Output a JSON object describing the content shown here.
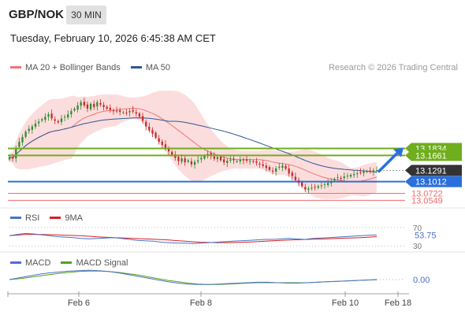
{
  "header": {
    "symbol": "GBP/NOK",
    "timeframe": "30 MIN"
  },
  "datetime": "Tuesday, February 10, 2026 6:45:38 AM CET",
  "legend_main": [
    {
      "label": "MA 20 + Bollinger Bands",
      "color": "#f07474"
    },
    {
      "label": "MA 50",
      "color": "#2f5597"
    }
  ],
  "credit": "Research © 2026 Trading Central",
  "colors": {
    "up": "#2e8b2e",
    "down": "#c62828",
    "band": "#fbd2d2",
    "resistance": "#6fae1c",
    "pivot": "#2a6fdb",
    "support": "#f06a6a",
    "last": "#333333"
  },
  "chart_data": {
    "type": "candlestick",
    "symbol": "GBP/NOK",
    "timeframe": "30 MIN",
    "x_ticks": [
      "Feb 6",
      "Feb 8",
      "Feb 10",
      "Feb 18"
    ],
    "price": {
      "ylim": [
        13.04,
        13.36
      ]
    },
    "last_price": 13.1291,
    "levels": [
      {
        "value": "13.1834",
        "type": "resistance"
      },
      {
        "value": "13.1661",
        "type": "resistance"
      },
      {
        "value": "13.1012",
        "type": "pivot"
      },
      {
        "value": "13.0722",
        "type": "support"
      },
      {
        "value": "13.0549",
        "type": "support"
      }
    ],
    "closes": [
      13.162,
      13.158,
      13.185,
      13.2,
      13.212,
      13.225,
      13.232,
      13.238,
      13.245,
      13.25,
      13.256,
      13.262,
      13.268,
      13.258,
      13.252,
      13.248,
      13.258,
      13.262,
      13.268,
      13.276,
      13.282,
      13.29,
      13.298,
      13.29,
      13.282,
      13.294,
      13.286,
      13.298,
      13.292,
      13.286,
      13.282,
      13.279,
      13.277,
      13.276,
      13.274,
      13.273,
      13.272,
      13.276,
      13.275,
      13.27,
      13.262,
      13.252,
      13.238,
      13.228,
      13.22,
      13.21,
      13.2,
      13.192,
      13.184,
      13.176,
      13.168,
      13.16,
      13.152,
      13.159,
      13.149,
      13.154,
      13.144,
      13.15,
      13.154,
      13.16,
      13.165,
      13.17,
      13.166,
      13.158,
      13.162,
      13.154,
      13.149,
      13.153,
      13.156,
      13.154,
      13.152,
      13.155,
      13.154,
      13.153,
      13.152,
      13.15,
      13.148,
      13.145,
      13.14,
      13.135,
      13.13,
      13.126,
      13.134,
      13.138,
      13.141,
      13.133,
      13.121,
      13.115,
      13.105,
      13.098,
      13.09,
      13.082,
      13.084,
      13.086,
      13.088,
      13.09,
      13.092,
      13.095,
      13.098,
      13.103,
      13.108,
      13.112,
      13.11,
      13.114,
      13.116,
      13.118,
      13.12,
      13.122,
      13.124,
      13.126,
      13.127,
      13.128,
      13.129,
      13.1291
    ],
    "projection": {
      "from": 13.1291,
      "to": 13.1834
    },
    "rsi": {
      "legend": [
        {
          "label": "RSI",
          "color": "#4a72c8"
        },
        {
          "label": "9MA",
          "color": "#d92020"
        }
      ],
      "levels": [
        "70",
        "30"
      ],
      "ylim": [
        20,
        80
      ],
      "last": "53.75",
      "values": [
        52,
        55,
        57,
        56,
        54,
        52,
        50,
        49,
        48,
        46,
        45,
        46,
        47,
        48,
        46,
        44,
        42,
        41,
        40,
        38,
        37,
        36,
        36,
        35,
        36,
        37,
        38,
        39,
        40,
        41,
        42,
        43,
        44,
        44,
        45,
        46,
        45,
        44,
        46,
        47,
        48,
        49,
        50,
        51,
        52,
        53,
        53.75
      ]
    },
    "macd": {
      "legend": [
        {
          "label": "MACD",
          "color": "#4a72c8"
        },
        {
          "label": "MACD Signal",
          "color": "#56a01e"
        }
      ],
      "zero_label": "0.00",
      "ylim": [
        -0.03,
        0.03
      ],
      "values": [
        0.0,
        0.004,
        0.008,
        0.012,
        0.015,
        0.017,
        0.019,
        0.02,
        0.021,
        0.02,
        0.018,
        0.015,
        0.011,
        0.007,
        0.003,
        -0.001,
        -0.005,
        -0.008,
        -0.01,
        -0.011,
        -0.011,
        -0.01,
        -0.009,
        -0.008,
        -0.007,
        -0.006,
        -0.006,
        -0.007,
        -0.008,
        -0.008,
        -0.007,
        -0.006,
        -0.005,
        -0.004,
        -0.003,
        -0.002,
        -0.001,
        0.0
      ],
      "signal": [
        0.0,
        0.002,
        0.005,
        0.008,
        0.011,
        0.014,
        0.016,
        0.018,
        0.019,
        0.019,
        0.018,
        0.016,
        0.013,
        0.01,
        0.006,
        0.002,
        -0.002,
        -0.005,
        -0.008,
        -0.01,
        -0.011,
        -0.011,
        -0.01,
        -0.009,
        -0.008,
        -0.007,
        -0.007,
        -0.007,
        -0.007,
        -0.007,
        -0.007,
        -0.006,
        -0.005,
        -0.004,
        -0.003,
        -0.002,
        -0.001,
        -0.0005
      ]
    }
  }
}
